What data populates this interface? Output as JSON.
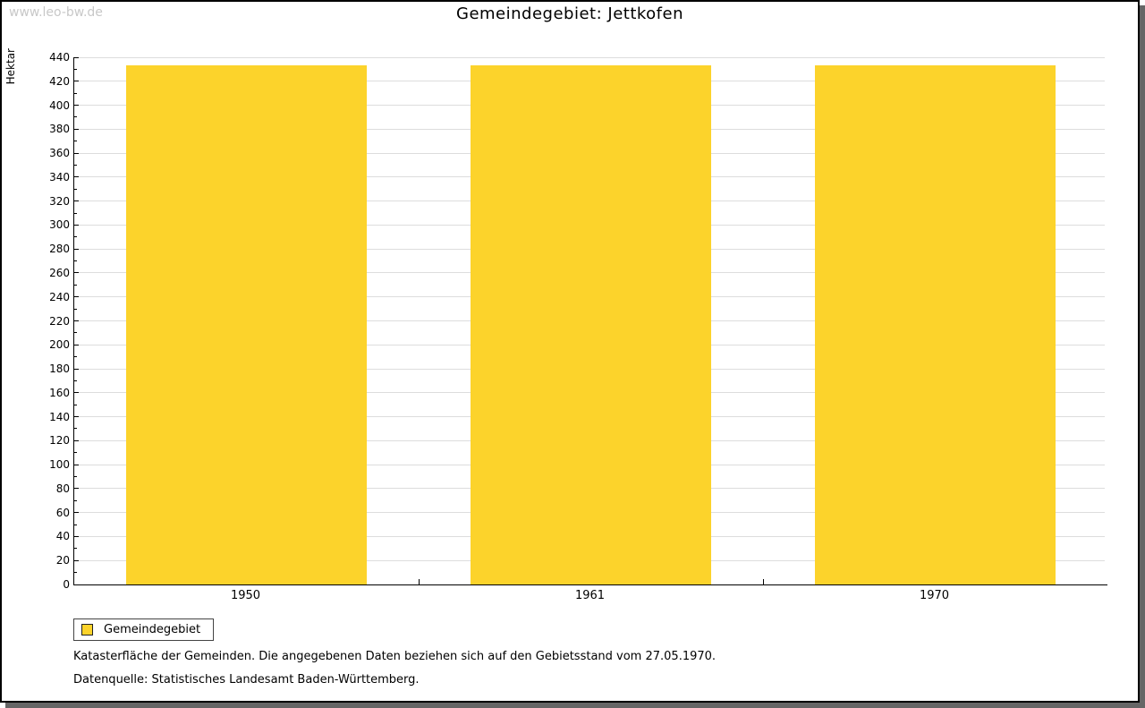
{
  "watermark": "www.leo-bw.de",
  "chart_data": {
    "type": "bar",
    "title": "Gemeindegebiet: Jettkofen",
    "categories": [
      "1950",
      "1961",
      "1970"
    ],
    "series": [
      {
        "name": "Gemeindegebiet",
        "values": [
          433,
          433,
          433
        ]
      }
    ],
    "xlabel": "",
    "ylabel": "Hektar",
    "ylim": [
      0,
      440
    ],
    "ytick_step": 20,
    "minor_tick_step": 10,
    "grid": true,
    "legend_position": "bottom-left",
    "bar_color": "#FCD32B"
  },
  "colors": {
    "bar": "#FCD32B",
    "gridline": "#DDDDDD",
    "axis": "#000000",
    "watermark": "#C8C8C8",
    "frame_shadow": "#666666"
  },
  "footer": {
    "line1": "Katasterfläche der Gemeinden. Die angegebenen Daten beziehen sich auf den Gebietsstand vom 27.05.1970.",
    "line2": "Datenquelle: Statistisches Landesamt Baden-Württemberg."
  }
}
